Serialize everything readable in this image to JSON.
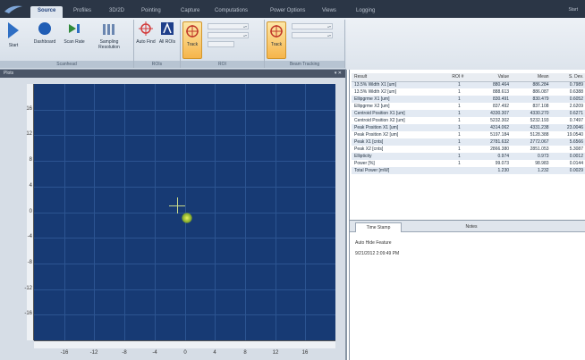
{
  "tabs": [
    "Source",
    "Profiles",
    "3D/2D",
    "Pointing",
    "Capture",
    "Computations",
    "Power Options",
    "Views",
    "Logging"
  ],
  "active_tab": "Source",
  "title_right": "Start",
  "ribbon": {
    "start_label": "Start",
    "dashboard_label": "Dashboard",
    "scan_rate_label": "Scan Rate",
    "sampling_label": "Sampling Resolution",
    "auto_find_label": "Auto Find",
    "all_rois_label": "All ROIs",
    "track1_label": "Track",
    "track2_label": "Track",
    "group1_label": "Scanhead",
    "group2_label": "ROIs",
    "group3_label": "ROI",
    "group4_label": "Beam Tracking"
  },
  "plot": {
    "panel_title": "Plots",
    "y_ticks": [
      "16",
      "12",
      "8",
      "4",
      "0",
      "-4",
      "-8",
      "-12",
      "-16"
    ],
    "x_ticks": [
      "-16",
      "-12",
      "-8",
      "-4",
      "0",
      "4",
      "8",
      "12",
      "16"
    ],
    "axis_range": [
      -20,
      20
    ],
    "crosshair": {
      "x": -1,
      "y": 1
    },
    "beam_center": {
      "x": 0.3,
      "y": -0.9
    },
    "background_color": "#173a74",
    "crosshair_color": "#c9d98a"
  },
  "results": {
    "headers": [
      "Result",
      "ROI #",
      "Value",
      "Mean",
      "S. Dev."
    ],
    "rows": [
      [
        "13.5% Width X1 [um]",
        "1",
        "880.464",
        "886.284",
        "0.7989"
      ],
      [
        "13.5% Width X2 [um]",
        "1",
        "888.613",
        "886.087",
        "0.6388"
      ],
      [
        "Ellipgrme X1 [um]",
        "1",
        "830.491",
        "830.479",
        "0.6052"
      ],
      [
        "Ellipgrme X2 [um]",
        "1",
        "837.492",
        "837.108",
        "2.6209"
      ],
      [
        "Centroid Position X1 [um]",
        "1",
        "4330.307",
        "4330.270",
        "0.6271"
      ],
      [
        "Centroid Position X2 [um]",
        "1",
        "5232.302",
        "5232.193",
        "0.7497"
      ],
      [
        "Peak Position X1 [um]",
        "1",
        "4314.062",
        "4331.238",
        "23.0046"
      ],
      [
        "Peak Position X2 [um]",
        "1",
        "5197.184",
        "5128.388",
        "19.0540"
      ],
      [
        "Peak X1 [cnts]",
        "1",
        "2781.632",
        "2772.067",
        "5.6566"
      ],
      [
        "Peak X2 [cnts]",
        "1",
        "2866.380",
        "2851.053",
        "5.3087"
      ],
      [
        "Ellipticity",
        "1",
        "0.974",
        "0.973",
        "0.0012"
      ],
      [
        "Power [%]",
        "1",
        "99.073",
        "98.983",
        "0.0144"
      ],
      [
        "Total Power [mW]",
        "",
        "1.230",
        "1.232",
        "0.0029"
      ]
    ]
  },
  "notes": {
    "tabs": [
      "Time Stamp",
      "Notes"
    ],
    "lines": [
      "Auto Hide Feature",
      "9/21/2012 2:09:49 PM"
    ]
  }
}
